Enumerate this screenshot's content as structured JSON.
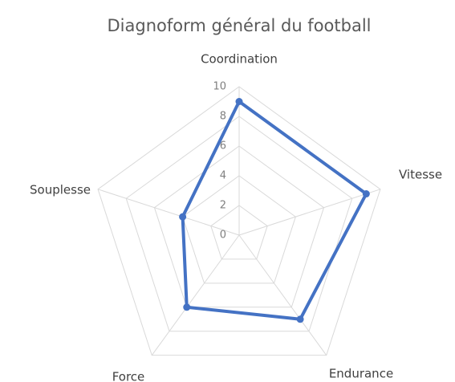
{
  "chart_data": {
    "type": "radar",
    "title": "Diagnoform général du football",
    "categories": [
      "Coordination",
      "Vitesse",
      "Endurance",
      "Force",
      "Souplesse"
    ],
    "series": [
      {
        "name": "Diagnoform",
        "color": "#4472c4",
        "values": [
          9,
          9,
          7,
          6,
          4
        ]
      }
    ],
    "rlim": [
      0,
      10
    ],
    "rticks": [
      0,
      2,
      4,
      6,
      8,
      10
    ],
    "grid": true
  }
}
